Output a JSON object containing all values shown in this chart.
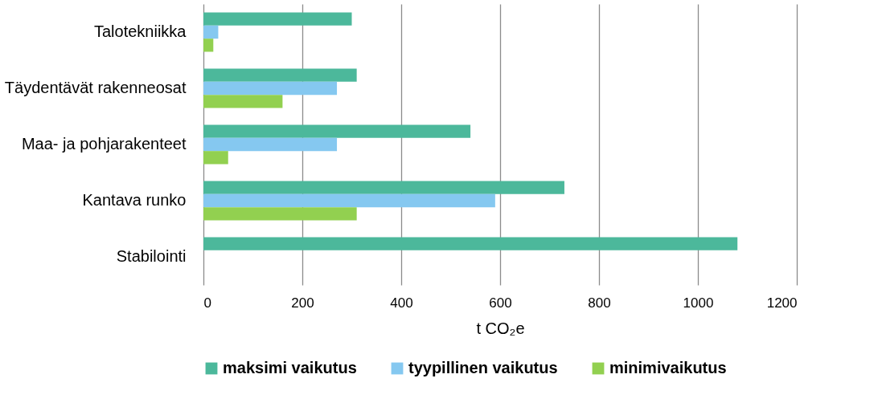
{
  "chart_data": {
    "type": "bar",
    "orientation": "horizontal",
    "xlabel": "t CO₂e",
    "categories": [
      "Talotekniikka",
      "Täydentävät rakenneosat",
      "Maa- ja pohjarakenteet",
      "Kantava runko",
      "Stabilointi"
    ],
    "series": [
      {
        "name": "maksimi vaikutus",
        "color": "#4cb89b",
        "values": [
          300,
          310,
          540,
          730,
          1080
        ]
      },
      {
        "name": "tyypillinen vaikutus",
        "color": "#85c8f0",
        "values": [
          30,
          270,
          270,
          590,
          null
        ]
      },
      {
        "name": "minimivaikutus",
        "color": "#92d050",
        "values": [
          20,
          160,
          50,
          310,
          null
        ]
      }
    ],
    "xlim": [
      0,
      1200
    ],
    "xticks": [
      0,
      200,
      400,
      600,
      800,
      1000,
      1200
    ],
    "grid": "x",
    "legend": "bottom"
  }
}
